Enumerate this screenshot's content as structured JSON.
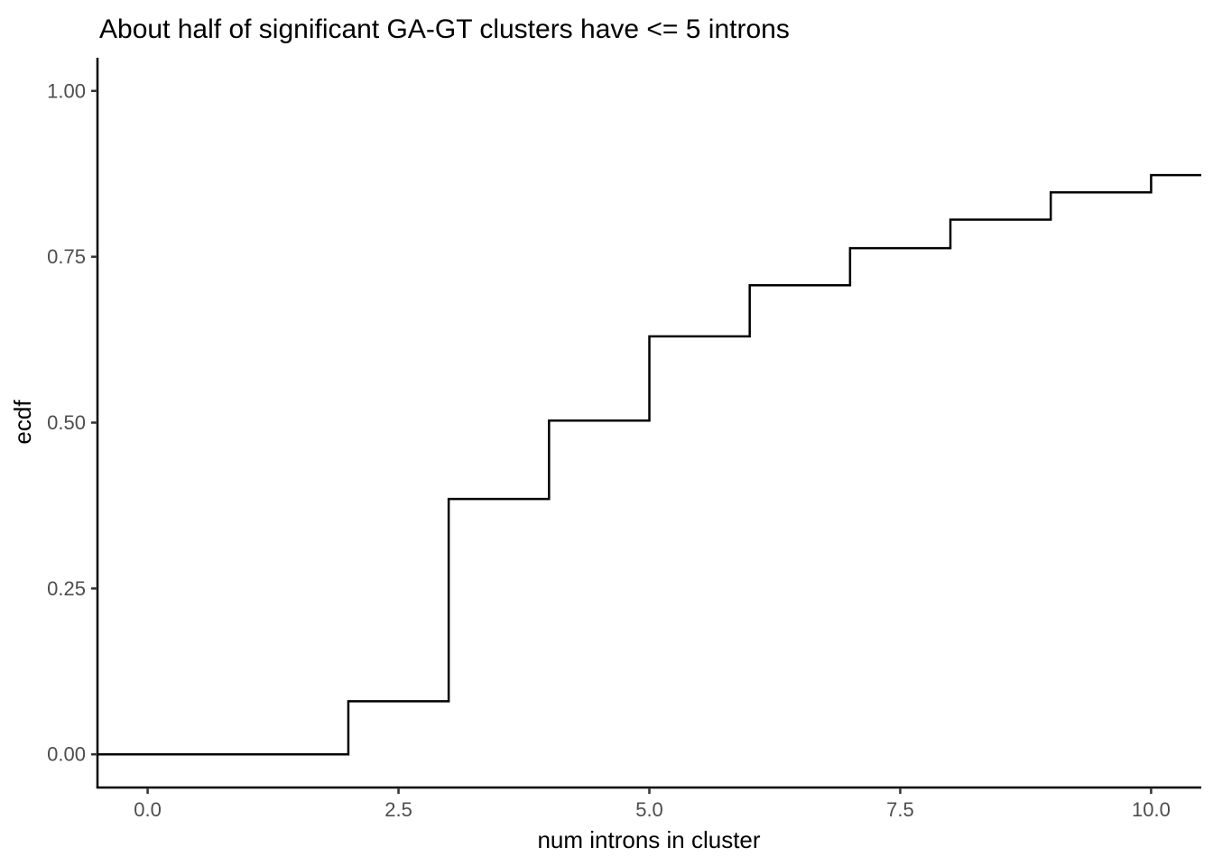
{
  "chart_data": {
    "type": "line",
    "subtype": "ecdf-step",
    "title": "About half of significant GA-GT clusters have <= 5 introns",
    "xlabel": "num introns in cluster",
    "ylabel": "ecdf",
    "grid": false,
    "legend": false,
    "xlim": [
      -0.5,
      10.5
    ],
    "ylim": [
      -0.05,
      1.05
    ],
    "x_ticks": [
      {
        "label": "0.0",
        "value": 0
      },
      {
        "label": "2.5",
        "value": 2.5
      },
      {
        "label": "5.0",
        "value": 5
      },
      {
        "label": "7.5",
        "value": 7.5
      },
      {
        "label": "10.0",
        "value": 10
      }
    ],
    "y_ticks": [
      {
        "label": "0.00",
        "value": 0
      },
      {
        "label": "0.25",
        "value": 0.25
      },
      {
        "label": "0.50",
        "value": 0.5
      },
      {
        "label": "0.75",
        "value": 0.75
      },
      {
        "label": "1.00",
        "value": 1
      }
    ],
    "start_ecdf": 0,
    "steps": [
      {
        "x": 2,
        "ecdf": 0.08
      },
      {
        "x": 3,
        "ecdf": 0.385
      },
      {
        "x": 4,
        "ecdf": 0.503
      },
      {
        "x": 5,
        "ecdf": 0.63
      },
      {
        "x": 6,
        "ecdf": 0.707
      },
      {
        "x": 7,
        "ecdf": 0.763
      },
      {
        "x": 8,
        "ecdf": 0.806
      },
      {
        "x": 9,
        "ecdf": 0.847
      },
      {
        "x": 10,
        "ecdf": 0.873
      }
    ],
    "line_color": "#000000",
    "axis_color": "#000000",
    "tick_mark_color": "#333333",
    "tick_label_color": "#4d4d4d",
    "background": "#ffffff"
  }
}
